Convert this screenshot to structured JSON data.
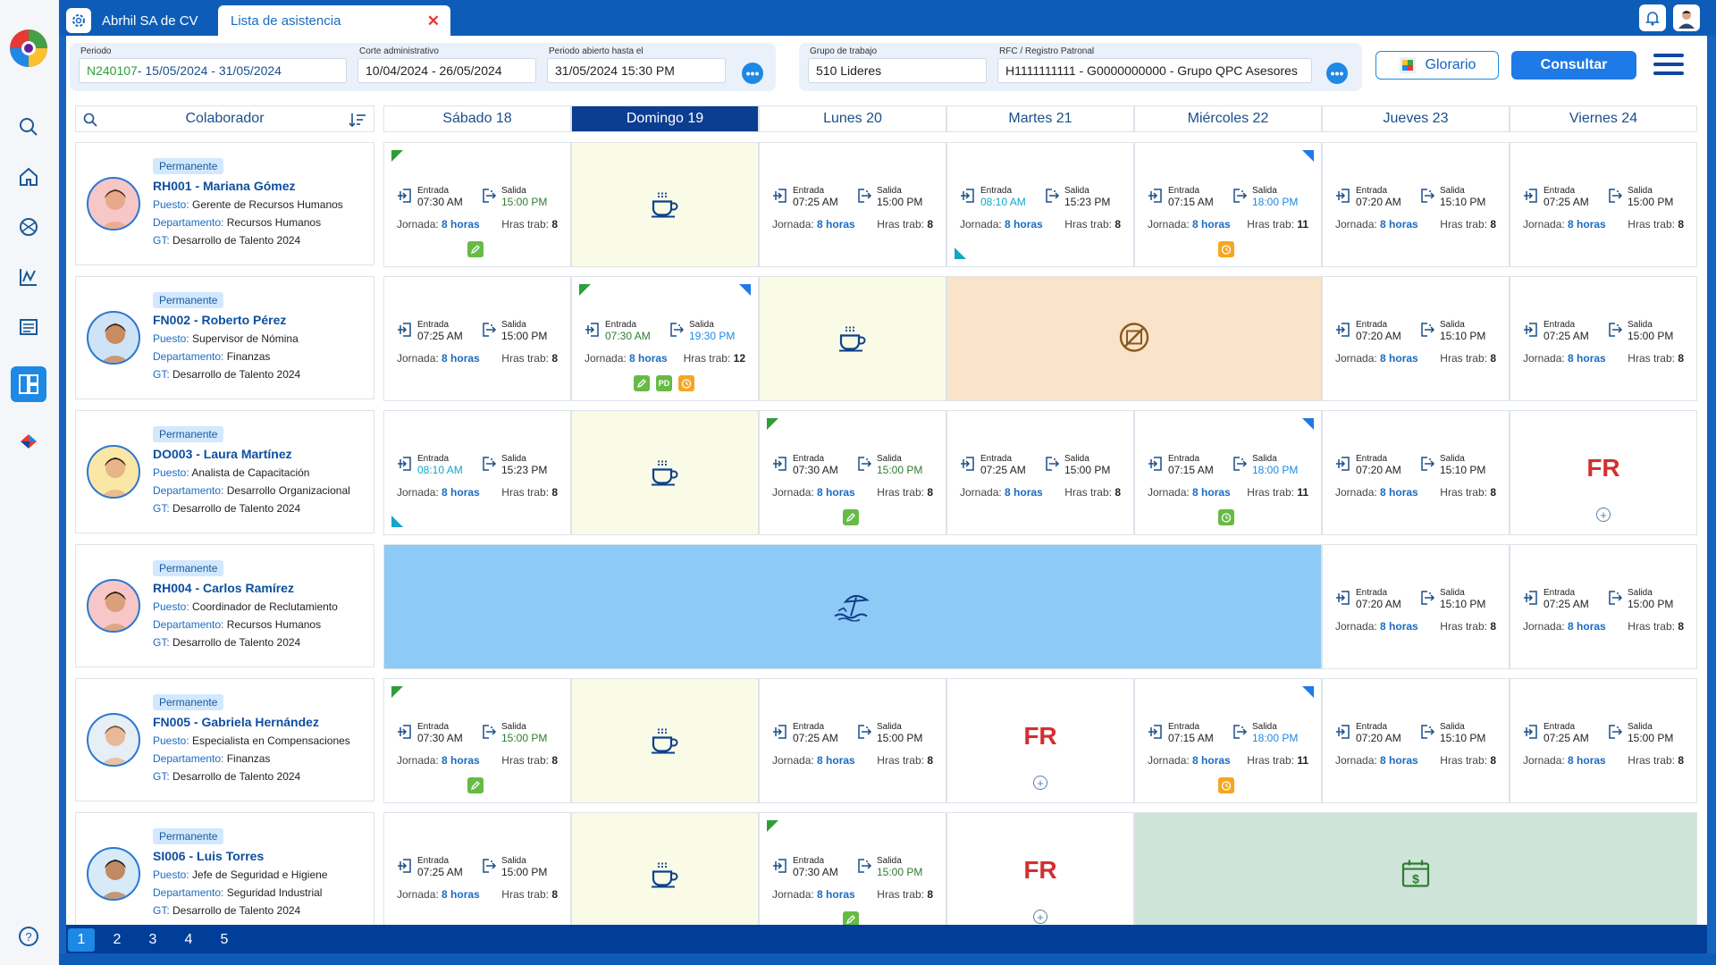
{
  "topbar": {
    "company_tab": "Abrhil SA de CV",
    "active_tab": "Lista de asistencia",
    "close": "✕"
  },
  "filters": {
    "periodo_label": "Periodo",
    "periodo_code": "N240107",
    "periodo_range": " - 15/05/2024 - 31/05/2024",
    "corte_label": "Corte administrativo",
    "corte_value": "10/04/2024 - 26/05/2024",
    "abierto_label": "Periodo abierto hasta el",
    "abierto_value": "31/05/2024 15:30 PM",
    "grupo_label": "Grupo de trabajo",
    "grupo_value": "510 Lideres",
    "rfc_label": "RFC / Registro Patronal",
    "rfc_value": "H1111111111 - G0000000000 - Grupo QPC Asesores",
    "more": "•••",
    "glosario": "Glorario",
    "consultar": "Consultar"
  },
  "grid": {
    "colaborador": "Colaborador",
    "days": [
      "Sábado 18",
      "Domingo 19",
      "Lunes 20",
      "Martes 21",
      "Miércoles 22",
      "Jueves 23",
      "Viernes 24"
    ],
    "labels": {
      "entrada": "Entrada",
      "salida": "Salida",
      "jornada": "Jornada:",
      "hras": "Hras trab:",
      "horas": "8 horas",
      "fr": "FR",
      "puesto": "Puesto:",
      "depto": "Departamento:",
      "gt": "GT:"
    }
  },
  "employees": [
    {
      "badge": "Permanente",
      "name": "RH001 - Mariana Gómez",
      "puesto": "Gerente de Recursos Humanos",
      "depto": "Recursos Humanos",
      "gt": "Desarrollo de Talento 2024"
    },
    {
      "badge": "Permanente",
      "name": "FN002 - Roberto Pérez",
      "puesto": "Supervisor de Nómina",
      "depto": "Finanzas",
      "gt": "Desarrollo de Talento 2024"
    },
    {
      "badge": "Permanente",
      "name": "DO003 - Laura Martínez",
      "puesto": "Analista de Capacitación",
      "depto": "Desarrollo Organizacional",
      "gt": "Desarrollo de Talento 2024"
    },
    {
      "badge": "Permanente",
      "name": "RH004 - Carlos Ramírez",
      "puesto": "Coordinador de Reclutamiento",
      "depto": "Recursos Humanos",
      "gt": "Desarrollo de Talento 2024"
    },
    {
      "badge": "Permanente",
      "name": "FN005 - Gabriela Hernández",
      "puesto": "Especialista en Compensaciones",
      "depto": "Finanzas",
      "gt": "Desarrollo de Talento 2024"
    },
    {
      "badge": "Permanente",
      "name": "SI006 - Luis Torres",
      "puesto": "Jefe de Seguridad e Higiene",
      "depto": "Seguridad Industrial",
      "gt": "Desarrollo de Talento 2024"
    }
  ],
  "cells": [
    [
      {
        "type": "att",
        "in": "07:30 AM",
        "out": "15:00 PM",
        "outc": "g",
        "hras": "8",
        "tl": "g",
        "mini": [
          "gr"
        ]
      },
      {
        "type": "rest"
      },
      {
        "type": "att",
        "in": "07:25 AM",
        "out": "15:00 PM",
        "hras": "8"
      },
      {
        "type": "att",
        "in": "08:10 AM",
        "inc": "c",
        "out": "15:23 PM",
        "hras": "8",
        "bl": "c"
      },
      {
        "type": "att",
        "in": "07:15 AM",
        "out": "18:00 PM",
        "outc": "b",
        "hras": "11",
        "tr": "b",
        "mini": [
          "or"
        ]
      },
      {
        "type": "att",
        "in": "07:20 AM",
        "out": "15:10 PM",
        "hras": "8"
      },
      {
        "type": "att",
        "in": "07:25 AM",
        "out": "15:00 PM",
        "hras": "8"
      }
    ],
    [
      {
        "type": "att",
        "in": "07:25 AM",
        "out": "15:00 PM",
        "hras": "8"
      },
      {
        "type": "att",
        "in": "07:30 AM",
        "inc": "g",
        "out": "19:30 PM",
        "outc": "b",
        "hras": "12",
        "tl": "g",
        "tr": "b",
        "mini": [
          "gr",
          "pd",
          "or"
        ]
      },
      {
        "type": "rest"
      },
      {
        "type": "disab",
        "span": 2
      },
      {
        "type": "att",
        "in": "07:20 AM",
        "out": "15:10 PM",
        "hras": "8"
      },
      {
        "type": "att",
        "in": "07:25 AM",
        "out": "15:00 PM",
        "hras": "8"
      }
    ],
    [
      {
        "type": "att",
        "in": "08:10 AM",
        "inc": "c",
        "out": "15:23 PM",
        "hras": "8",
        "bl": "c"
      },
      {
        "type": "rest"
      },
      {
        "type": "att",
        "in": "07:30 AM",
        "out": "15:00 PM",
        "outc": "g",
        "hras": "8",
        "tl": "g",
        "mini": [
          "gr"
        ]
      },
      {
        "type": "att",
        "in": "07:25 AM",
        "out": "15:00 PM",
        "hras": "8"
      },
      {
        "type": "att",
        "in": "07:15 AM",
        "out": "18:00 PM",
        "outc": "b",
        "hras": "11",
        "tr": "b",
        "mini": [
          "gr-clock"
        ]
      },
      {
        "type": "att",
        "in": "07:20 AM",
        "out": "15:10 PM",
        "hras": "8"
      },
      {
        "type": "fr"
      }
    ],
    [
      {
        "type": "vac",
        "span": 5
      },
      {
        "type": "att",
        "in": "07:20 AM",
        "out": "15:10 PM",
        "hras": "8"
      },
      {
        "type": "att",
        "in": "07:25 AM",
        "out": "15:00 PM",
        "hras": "8"
      }
    ],
    [
      {
        "type": "att",
        "in": "07:30 AM",
        "out": "15:00 PM",
        "outc": "g",
        "hras": "8",
        "tl": "g",
        "mini": [
          "gr"
        ]
      },
      {
        "type": "rest"
      },
      {
        "type": "att",
        "in": "07:25 AM",
        "out": "15:00 PM",
        "hras": "8"
      },
      {
        "type": "fr"
      },
      {
        "type": "att",
        "in": "07:15 AM",
        "out": "18:00 PM",
        "outc": "b",
        "hras": "11",
        "tr": "b",
        "mini": [
          "or"
        ]
      },
      {
        "type": "att",
        "in": "07:20 AM",
        "out": "15:10 PM",
        "hras": "8"
      },
      {
        "type": "att",
        "in": "07:25 AM",
        "out": "15:00 PM",
        "hras": "8"
      }
    ],
    [
      {
        "type": "att",
        "in": "07:25 AM",
        "out": "15:00 PM",
        "hras": "8"
      },
      {
        "type": "rest"
      },
      {
        "type": "att",
        "in": "07:30 AM",
        "out": "15:00 PM",
        "outc": "g",
        "hras": "8",
        "tl": "g",
        "mini": [
          "gr"
        ]
      },
      {
        "type": "fr"
      },
      {
        "type": "pay",
        "span": 3
      }
    ]
  ],
  "pager": [
    "1",
    "2",
    "3",
    "4",
    "5"
  ],
  "colors": {
    "accent": "#1e88e5",
    "selected_day": "#0b3d91",
    "rest": "#f9fbe7",
    "disability": "#f9e3c9",
    "vacation": "#8ecaf6",
    "payment": "#cfe4d8"
  }
}
